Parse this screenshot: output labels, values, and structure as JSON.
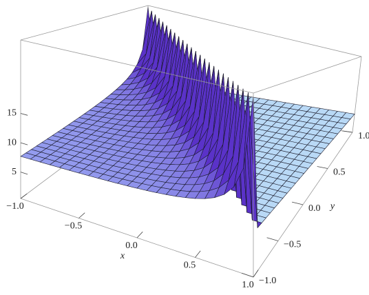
{
  "chart_data": {
    "type": "surface3d",
    "xlabel": "x",
    "ylabel": "y",
    "xlim": [
      -1,
      1
    ],
    "ylim": [
      -1,
      1
    ],
    "zlim": [
      0.5,
      27.5
    ],
    "xticks": [
      {
        "value": -1,
        "label": "−1.0"
      },
      {
        "value": -0.5,
        "label": "−0.5"
      },
      {
        "value": 0,
        "label": "0.0"
      },
      {
        "value": 0.5,
        "label": "0.5"
      },
      {
        "value": 1,
        "label": "1.0"
      }
    ],
    "yticks": [
      {
        "value": -1,
        "label": "−1.0"
      },
      {
        "value": -0.5,
        "label": "−0.5"
      },
      {
        "value": 0,
        "label": "0.0"
      },
      {
        "value": 0.5,
        "label": "0.5"
      },
      {
        "value": 1,
        "label": "1.0"
      }
    ],
    "zticks": [
      5,
      10,
      15
    ]
  }
}
